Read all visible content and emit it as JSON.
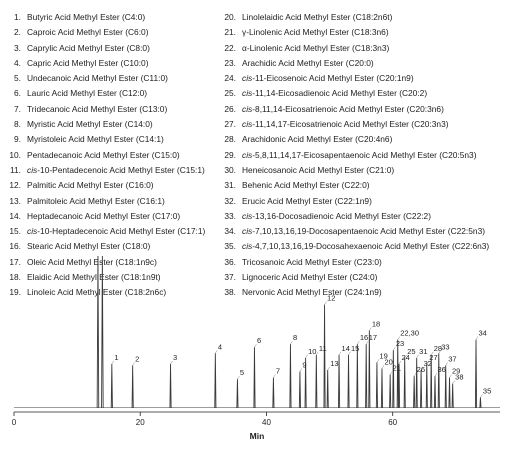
{
  "legend": [
    {
      "num": "1.",
      "name": "Butyric Acid Methyl Ester (C4:0)"
    },
    {
      "num": "2.",
      "name": "Caproic Acid Methyl Ester (C6:0)"
    },
    {
      "num": "3.",
      "name": "Caprylic Acid Methyl Ester (C8:0)"
    },
    {
      "num": "4.",
      "name": "Capric Acid Methyl Ester (C10:0)"
    },
    {
      "num": "5.",
      "name": "Undecanoic Acid Methyl Ester (C11:0)"
    },
    {
      "num": "6.",
      "name": "Lauric Acid Methyl Ester (C12:0)"
    },
    {
      "num": "7.",
      "name": "Tridecanoic Acid Methyl Ester (C13:0)"
    },
    {
      "num": "8.",
      "name": "Myristic Acid Methyl Ester (C14:0)"
    },
    {
      "num": "9.",
      "name": "Myristoleic Acid Methyl Ester (C14:1)"
    },
    {
      "num": "10.",
      "name": "Pentadecanoic Acid Methyl Ester (C15:0)"
    },
    {
      "num": "11.",
      "prefix": "cis",
      "name": "-10-Pentadecenoic Acid Methyl Ester (C15:1)"
    },
    {
      "num": "12.",
      "name": "Palmitic Acid Methyl Ester (C16:0)"
    },
    {
      "num": "13.",
      "name": "Palmitoleic Acid Methyl Ester (C16:1)"
    },
    {
      "num": "14.",
      "name": "Heptadecanoic Acid Methyl Ester (C17:0)"
    },
    {
      "num": "15.",
      "prefix": "cis",
      "name": "-10-Heptadecenoic Acid Methyl Ester (C17:1)"
    },
    {
      "num": "16.",
      "name": "Stearic Acid Methyl Ester (C18:0)"
    },
    {
      "num": "17.",
      "name": "Oleic Acid Methyl Ester (C18:1n9c)"
    },
    {
      "num": "18.",
      "name": "Elaidic Acid Methyl Ester (C18:1n9t)"
    },
    {
      "num": "19.",
      "name": "Linoleic Acid Methyl Ester (C18:2n6c)"
    },
    {
      "num": "20.",
      "name": "Linolelaidic Acid Methyl Ester (C18:2n6t)"
    },
    {
      "num": "21.",
      "name": "γ-Linolenic Acid Methyl Ester (C18:3n6)"
    },
    {
      "num": "22.",
      "name": "α-Linolenic Acid Methyl Ester (C18:3n3)"
    },
    {
      "num": "23.",
      "name": "Arachidic Acid Methyl Ester (C20:0)"
    },
    {
      "num": "24.",
      "prefix": "cis",
      "name": "-11-Eicosenoic Acid Methyl Ester (C20:1n9)"
    },
    {
      "num": "25.",
      "prefix": "cis",
      "name": "-11,14-Eicosadienoic Acid Methyl Ester (C20:2)"
    },
    {
      "num": "26.",
      "prefix": "cis",
      "name": "-8,11,14-Eicosatrienoic Acid Methyl Ester (C20:3n6)"
    },
    {
      "num": "27.",
      "prefix": "cis",
      "name": "-11,14,17-Eicosatrienoic Acid Methyl Ester (C20:3n3)"
    },
    {
      "num": "28.",
      "name": "Arachidonic Acid Methyl Ester (C20:4n6)"
    },
    {
      "num": "29.",
      "prefix": "cis",
      "name": "-5,8,11,14,17-Eicosapentaenoic Acid Methyl Ester (C20:5n3)"
    },
    {
      "num": "30.",
      "name": "Heneicosanoic Acid Methyl Ester (C21:0)"
    },
    {
      "num": "31.",
      "name": "Behenic Acid Methyl Ester (C22:0)"
    },
    {
      "num": "32.",
      "name": "Erucic Acid Methyl Ester (C22:1n9)"
    },
    {
      "num": "33.",
      "prefix": "cis",
      "name": "-13,16-Docosadienoic Acid Methyl Ester (C22:2)"
    },
    {
      "num": "34.",
      "prefix": "cis",
      "name": "-7,10,13,16,19-Docosapentaenoic Acid Methyl Ester (C22:5n3)"
    },
    {
      "num": "35.",
      "prefix": "cis",
      "name": "-4,7,10,13,16,19-Docosahexaenoic Acid Methyl Ester (C22:6n3)"
    },
    {
      "num": "36.",
      "name": "Tricosanoic Acid Methyl Ester (C23:0)"
    },
    {
      "num": "37.",
      "name": "Lignoceric Acid Methyl Ester (C24:0)"
    },
    {
      "num": "38.",
      "name": "Nervonic Acid Methyl Ester (C24:1n9)"
    }
  ],
  "colors": {
    "trace": "#3a3a3a",
    "axis": "#222222",
    "text": "#222222"
  },
  "chart_data": {
    "type": "line",
    "title": "",
    "xlabel": "Min",
    "ylabel": "",
    "xlim": [
      0,
      77
    ],
    "ylim": [
      0,
      100
    ],
    "x_ticks": [
      0,
      20,
      40,
      60
    ],
    "x_tick_labels": [
      "0",
      "20",
      "40",
      "60"
    ],
    "grid": false,
    "solvent_peaks": [
      {
        "x": 13.3,
        "y": 100
      },
      {
        "x": 14.0,
        "y": 100
      }
    ],
    "peaks": [
      {
        "label": "1",
        "x": 15.5,
        "y": 29
      },
      {
        "label": "2",
        "x": 18.8,
        "y": 28
      },
      {
        "label": "3",
        "x": 24.8,
        "y": 29
      },
      {
        "label": "4",
        "x": 31.9,
        "y": 36
      },
      {
        "label": "5",
        "x": 35.4,
        "y": 19
      },
      {
        "label": "6",
        "x": 38.1,
        "y": 40
      },
      {
        "label": "7",
        "x": 41.1,
        "y": 20
      },
      {
        "label": "8",
        "x": 43.8,
        "y": 42
      },
      {
        "label": "9",
        "x": 45.3,
        "y": 24
      },
      {
        "label": "10",
        "x": 46.2,
        "y": 33
      },
      {
        "label": "11",
        "x": 47.9,
        "y": 35
      },
      {
        "label": "12",
        "x": 49.2,
        "y": 68
      },
      {
        "label": "13",
        "x": 49.7,
        "y": 25
      },
      {
        "label": "14",
        "x": 51.5,
        "y": 35
      },
      {
        "label": "15",
        "x": 53.0,
        "y": 35
      },
      {
        "label": "16",
        "x": 54.4,
        "y": 42
      },
      {
        "label": "17",
        "x": 55.8,
        "y": 42
      },
      {
        "label": "18",
        "x": 56.3,
        "y": 51
      },
      {
        "label": "19",
        "x": 57.5,
        "y": 30
      },
      {
        "label": "20",
        "x": 58.3,
        "y": 26
      },
      {
        "label": "21",
        "x": 59.6,
        "y": 22
      },
      {
        "label": "22,30",
        "x": 60.8,
        "y": 45
      },
      {
        "label": "23",
        "x": 60.1,
        "y": 38
      },
      {
        "label": "24",
        "x": 61.0,
        "y": 29
      },
      {
        "label": "25",
        "x": 61.9,
        "y": 33
      },
      {
        "label": "26",
        "x": 63.4,
        "y": 21
      },
      {
        "label": "27",
        "x": 65.4,
        "y": 29
      },
      {
        "label": "28",
        "x": 66.1,
        "y": 35
      },
      {
        "label": "29",
        "x": 69.0,
        "y": 20
      },
      {
        "label": "31",
        "x": 63.8,
        "y": 33
      },
      {
        "label": "32",
        "x": 64.5,
        "y": 25
      },
      {
        "label": "33",
        "x": 67.3,
        "y": 36
      },
      {
        "label": "34",
        "x": 73.2,
        "y": 45
      },
      {
        "label": "35",
        "x": 73.9,
        "y": 7
      },
      {
        "label": "36",
        "x": 66.7,
        "y": 21
      },
      {
        "label": "37",
        "x": 68.4,
        "y": 28
      },
      {
        "label": "38",
        "x": 69.5,
        "y": 16
      }
    ]
  }
}
